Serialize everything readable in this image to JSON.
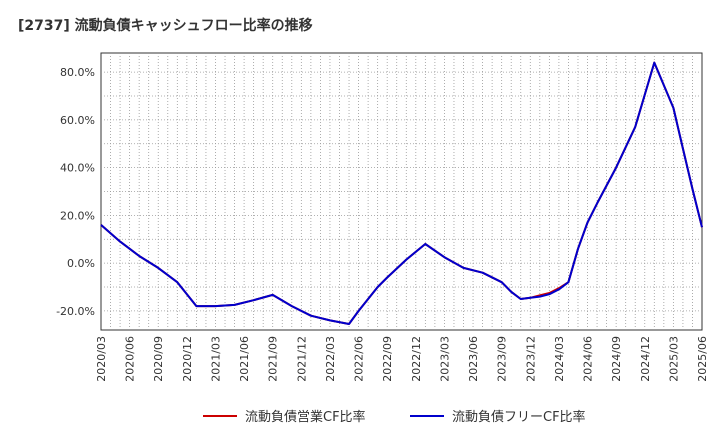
{
  "title": "[2737]  流動負債キャッシュフロー比率の推移",
  "colors": {
    "operating": "#cc0000",
    "free": "#0000cc",
    "grid": "#999999",
    "axis": "#333333"
  },
  "chart_data": {
    "type": "line",
    "title": "[2737]  流動負債キャッシュフロー比率の推移",
    "xlabel": "",
    "ylabel": "",
    "ylim": [
      -28,
      88
    ],
    "y_ticks": [
      -20,
      0,
      20,
      40,
      60,
      80
    ],
    "y_tick_labels": [
      "-20.0%",
      "0.0%",
      "20.0%",
      "40.0%",
      "60.0%",
      "80.0%"
    ],
    "x_tick_labels": [
      "2020/03",
      "2020/06",
      "2020/09",
      "2020/12",
      "2021/03",
      "2021/06",
      "2021/09",
      "2021/12",
      "2022/03",
      "2022/06",
      "2022/09",
      "2022/12",
      "2023/03",
      "2023/06",
      "2023/09",
      "2023/12",
      "2024/03",
      "2024/06",
      "2024/09",
      "2024/12",
      "2025/03",
      "2025/06"
    ],
    "x_months_range": [
      0,
      63
    ],
    "legend_position": "bottom",
    "series": [
      {
        "name": "流動負債営業CF比率",
        "color": "#cc0000",
        "x": [
          0,
          2,
          4,
          6,
          8,
          10,
          12,
          14,
          16,
          18,
          20,
          22,
          24,
          26,
          27,
          28,
          29,
          30,
          32,
          34,
          36,
          38,
          40,
          42,
          43,
          44,
          45,
          46,
          47,
          48,
          49,
          50,
          51,
          52,
          54,
          56,
          58,
          60,
          61,
          62,
          63
        ],
        "values": [
          16,
          9,
          3,
          -2,
          -8,
          -18,
          -18,
          -17.5,
          -15.5,
          -13.3,
          -18,
          -22,
          -24,
          -25.5,
          -20,
          -15,
          -10,
          -6,
          1.5,
          8,
          2.5,
          -2,
          -4,
          -8,
          -12,
          -15,
          -14.5,
          -13.5,
          -12.5,
          -10.5,
          -8,
          6,
          17,
          25,
          40,
          57,
          84,
          65,
          48,
          31,
          15
        ]
      },
      {
        "name": "流動負債フリーCF比率",
        "color": "#0000cc",
        "x": [
          0,
          2,
          4,
          6,
          8,
          10,
          12,
          14,
          16,
          18,
          20,
          22,
          24,
          26,
          27,
          28,
          29,
          30,
          32,
          34,
          36,
          38,
          40,
          42,
          43,
          44,
          45,
          46,
          47,
          48,
          49,
          50,
          51,
          52,
          54,
          56,
          58,
          60,
          61,
          62,
          63
        ],
        "values": [
          16,
          9,
          3,
          -2,
          -8,
          -18,
          -18,
          -17.5,
          -15.5,
          -13.3,
          -18,
          -22,
          -24,
          -25.5,
          -20,
          -15,
          -10,
          -6,
          1.5,
          8,
          2.5,
          -2,
          -4,
          -8,
          -12,
          -15,
          -14.5,
          -14,
          -13,
          -11,
          -8,
          6,
          17,
          25,
          40,
          57,
          84,
          65,
          48,
          31,
          15
        ]
      }
    ]
  }
}
